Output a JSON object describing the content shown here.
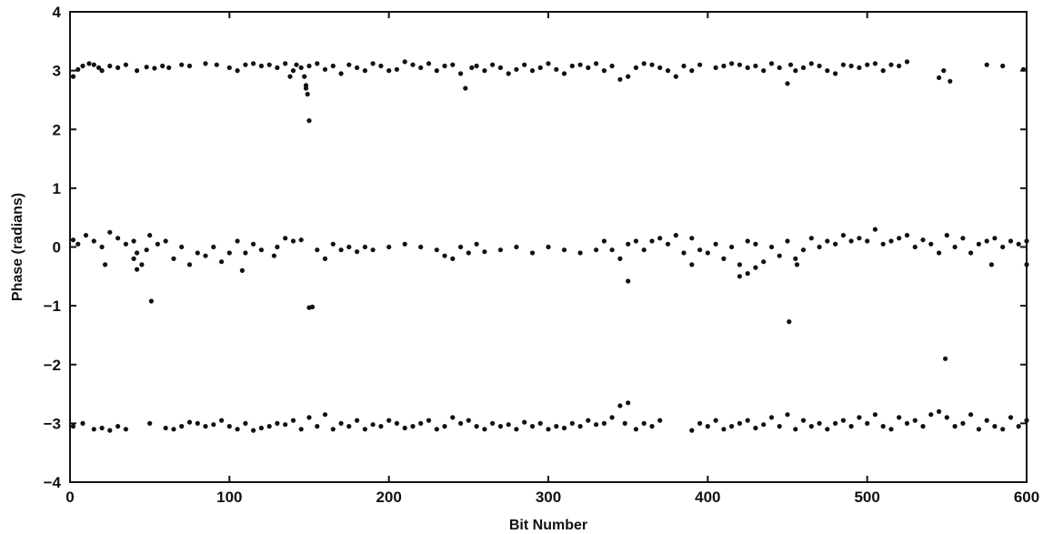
{
  "chart_data": {
    "type": "scatter",
    "xlabel": "Bit Number",
    "ylabel": "Phase (radians)",
    "xlim": [
      0,
      600
    ],
    "ylim": [
      -4,
      4
    ],
    "xticks": [
      0,
      100,
      200,
      300,
      400,
      500,
      600
    ],
    "yticks": [
      -4,
      -3,
      -2,
      -1,
      0,
      1,
      2,
      3,
      4
    ],
    "grid": false,
    "marker_color": "#111111",
    "series": [
      {
        "x": [
          2,
          5,
          8,
          12,
          15,
          18,
          20,
          25,
          30,
          35,
          42,
          48,
          53,
          58,
          62,
          70,
          75,
          85,
          92,
          100,
          105,
          110,
          115,
          120,
          125,
          130,
          135,
          138,
          140,
          142,
          145,
          148,
          150,
          155,
          160,
          165,
          170,
          175,
          180,
          185,
          190,
          195,
          200,
          205,
          210,
          215,
          220,
          225,
          230,
          235,
          240,
          245,
          248,
          252,
          255,
          260,
          265,
          270,
          275,
          280,
          285,
          290,
          295,
          300,
          305,
          310,
          315,
          320,
          325,
          330,
          335,
          340,
          345,
          350,
          355,
          360,
          365,
          370,
          375,
          380,
          385,
          390,
          395,
          405,
          410,
          415,
          420,
          425,
          430,
          435,
          440,
          445,
          450,
          452,
          455,
          460,
          465,
          470,
          475,
          480,
          485,
          490,
          495,
          500,
          505,
          510,
          515,
          520,
          525,
          545,
          548,
          552,
          575,
          585,
          598
        ],
        "y": [
          2.9,
          3.02,
          3.08,
          3.12,
          3.1,
          3.05,
          3.0,
          3.08,
          3.05,
          3.1,
          3.0,
          3.06,
          3.04,
          3.08,
          3.05,
          3.1,
          3.08,
          3.12,
          3.1,
          3.05,
          3.0,
          3.1,
          3.12,
          3.08,
          3.1,
          3.05,
          3.12,
          2.9,
          3.0,
          3.1,
          3.05,
          2.7,
          3.08,
          3.12,
          3.02,
          3.08,
          2.95,
          3.1,
          3.05,
          3.0,
          3.12,
          3.08,
          3.0,
          3.02,
          3.15,
          3.1,
          3.05,
          3.12,
          3.0,
          3.08,
          3.1,
          2.95,
          2.7,
          3.05,
          3.08,
          3.0,
          3.1,
          3.05,
          2.95,
          3.02,
          3.1,
          3.0,
          3.05,
          3.12,
          3.02,
          2.95,
          3.08,
          3.1,
          3.05,
          3.12,
          3.0,
          3.08,
          2.85,
          2.9,
          3.05,
          3.12,
          3.1,
          3.05,
          3.0,
          2.9,
          3.08,
          3.0,
          3.1,
          3.05,
          3.08,
          3.12,
          3.1,
          3.05,
          3.08,
          3.0,
          3.12,
          3.05,
          2.78,
          3.1,
          3.0,
          3.05,
          3.12,
          3.08,
          3.0,
          2.95,
          3.1,
          3.08,
          3.05,
          3.1,
          3.12,
          3.0,
          3.1,
          3.08,
          3.15,
          2.88,
          3.0,
          2.82,
          3.1,
          3.08,
          3.02
        ]
      },
      {
        "x": [
          147,
          148,
          149,
          150,
          152
        ],
        "y": [
          2.9,
          2.75,
          2.6,
          2.15,
          -1.02
        ]
      },
      {
        "x": [
          2,
          5,
          10,
          15,
          20,
          25,
          30,
          35,
          40,
          42,
          45,
          48,
          50,
          55,
          60,
          65,
          70,
          75,
          80,
          85,
          90,
          95,
          100,
          105,
          110,
          115,
          120,
          130,
          135,
          140,
          145,
          155,
          160,
          165,
          170,
          175,
          180,
          185,
          190,
          200,
          210,
          220,
          230,
          235,
          240,
          245,
          250,
          255,
          260,
          270,
          280,
          290,
          300,
          310,
          320,
          330,
          335,
          340,
          345,
          350,
          355,
          360,
          365,
          370,
          375,
          380,
          385,
          390,
          395,
          400,
          405,
          410,
          415,
          420,
          425,
          430,
          435,
          440,
          445,
          450,
          455,
          460,
          465,
          470,
          475,
          480,
          485,
          490,
          495,
          500,
          505,
          510,
          515,
          520,
          525,
          530,
          535,
          540,
          545,
          550,
          555,
          560,
          565,
          570,
          575,
          580,
          585,
          590,
          595,
          600
        ],
        "y": [
          0.12,
          0.05,
          0.2,
          0.1,
          0.0,
          0.25,
          0.15,
          0.05,
          0.1,
          -0.1,
          -0.3,
          -0.05,
          0.2,
          0.05,
          0.1,
          -0.2,
          0.0,
          -0.3,
          -0.1,
          -0.15,
          0.0,
          -0.25,
          -0.1,
          0.1,
          -0.1,
          0.05,
          -0.05,
          0.0,
          0.15,
          0.1,
          0.12,
          -0.05,
          -0.2,
          0.05,
          -0.05,
          0.0,
          -0.08,
          0.0,
          -0.05,
          0.0,
          0.05,
          0.0,
          -0.05,
          -0.15,
          -0.2,
          0.0,
          -0.1,
          0.05,
          -0.08,
          -0.05,
          0.0,
          -0.1,
          0.0,
          -0.05,
          -0.1,
          -0.05,
          0.1,
          -0.05,
          -0.2,
          0.05,
          0.1,
          -0.05,
          0.1,
          0.15,
          0.05,
          0.2,
          -0.1,
          0.15,
          -0.05,
          -0.1,
          0.05,
          -0.2,
          0.0,
          -0.3,
          0.1,
          0.05,
          -0.25,
          0.0,
          -0.15,
          0.1,
          -0.2,
          -0.05,
          0.15,
          0.0,
          0.1,
          0.05,
          0.2,
          0.1,
          0.15,
          0.1,
          0.3,
          0.05,
          0.1,
          0.15,
          0.2,
          0.0,
          0.12,
          0.05,
          -0.1,
          0.2,
          0.0,
          0.15,
          -0.1,
          0.05,
          0.1,
          0.15,
          0.0,
          0.1,
          0.05,
          0.1
        ]
      },
      {
        "x": [
          22,
          40,
          42,
          108,
          128,
          390,
          420,
          425,
          430,
          456,
          578,
          600
        ],
        "y": [
          -0.3,
          -0.2,
          -0.38,
          -0.4,
          -0.15,
          -0.3,
          -0.5,
          -0.45,
          -0.35,
          -0.3,
          -0.3,
          -0.3
        ]
      },
      {
        "x": [
          51,
          150,
          350,
          451,
          549
        ],
        "y": [
          -0.92,
          -1.03,
          -0.58,
          -1.27,
          -1.9
        ]
      },
      {
        "x": [
          2,
          8,
          15,
          20,
          25,
          30,
          35,
          50,
          60,
          65,
          70,
          75,
          80,
          85,
          90,
          95,
          100,
          105,
          110,
          115,
          120,
          125,
          130,
          135,
          140,
          145,
          150,
          155,
          160,
          165,
          170,
          175,
          180,
          185,
          190,
          195,
          200,
          205,
          210,
          215,
          220,
          225,
          230,
          235,
          240,
          245,
          250,
          255,
          260,
          265,
          270,
          275,
          280,
          285,
          290,
          295,
          300,
          305,
          310,
          315,
          320,
          325,
          330,
          335,
          340,
          345,
          348,
          350,
          355,
          360,
          365,
          370,
          390,
          395,
          400,
          405,
          410,
          415,
          420,
          425,
          430,
          435,
          440,
          445,
          450,
          455,
          460,
          465,
          470,
          475,
          480,
          485,
          490,
          495,
          500,
          505,
          510,
          515,
          520,
          525,
          530,
          535,
          540,
          545,
          550,
          555,
          560,
          565,
          570,
          575,
          580,
          585,
          590,
          595,
          600
        ],
        "y": [
          -3.05,
          -3.0,
          -3.1,
          -3.08,
          -3.12,
          -3.05,
          -3.1,
          -3.0,
          -3.08,
          -3.1,
          -3.05,
          -2.98,
          -3.0,
          -3.05,
          -3.02,
          -2.95,
          -3.05,
          -3.1,
          -3.0,
          -3.12,
          -3.08,
          -3.05,
          -3.0,
          -3.02,
          -2.95,
          -3.1,
          -2.9,
          -3.05,
          -2.85,
          -3.1,
          -3.0,
          -3.05,
          -2.95,
          -3.1,
          -3.02,
          -3.05,
          -2.95,
          -3.0,
          -3.08,
          -3.05,
          -3.0,
          -2.95,
          -3.1,
          -3.05,
          -2.9,
          -3.0,
          -2.95,
          -3.05,
          -3.1,
          -3.0,
          -3.05,
          -3.02,
          -3.1,
          -2.98,
          -3.05,
          -3.0,
          -3.1,
          -3.05,
          -3.08,
          -3.0,
          -3.05,
          -2.95,
          -3.02,
          -3.0,
          -2.9,
          -2.7,
          -3.0,
          -2.65,
          -3.1,
          -3.0,
          -3.05,
          -2.95,
          -3.12,
          -3.0,
          -3.05,
          -2.95,
          -3.1,
          -3.05,
          -3.0,
          -2.95,
          -3.08,
          -3.02,
          -2.9,
          -3.05,
          -2.85,
          -3.1,
          -2.95,
          -3.05,
          -3.0,
          -3.1,
          -3.0,
          -2.95,
          -3.05,
          -2.9,
          -3.0,
          -2.85,
          -3.05,
          -3.1,
          -2.9,
          -3.0,
          -2.95,
          -3.05,
          -2.85,
          -2.8,
          -2.9,
          -3.05,
          -3.0,
          -2.85,
          -3.1,
          -2.95,
          -3.05,
          -3.1,
          -2.9,
          -3.05,
          -2.95
        ]
      }
    ]
  }
}
